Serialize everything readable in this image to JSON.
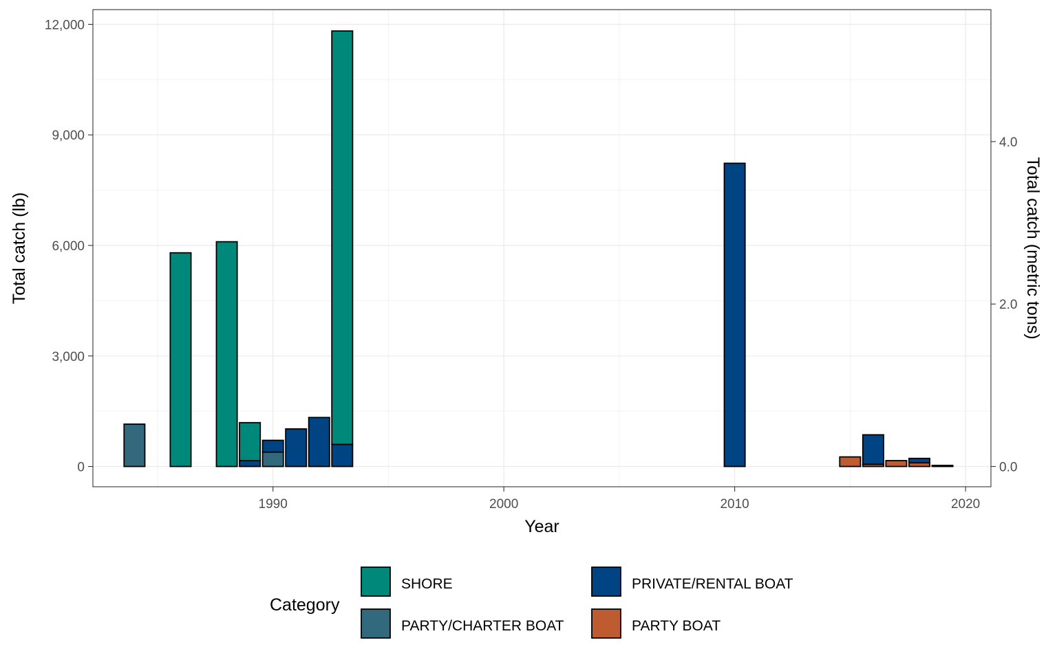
{
  "chart_data": {
    "type": "bar",
    "stacked": true,
    "xlabel": "Year",
    "ylabel": "Total catch (lb)",
    "y2label": "Total catch (metric tons)",
    "xlim": [
      1982.2,
      2021.1
    ],
    "ylim": [
      -550,
      12400
    ],
    "x_ticks": [
      1990,
      2000,
      2010,
      2020
    ],
    "y_ticks": [
      {
        "value": 0,
        "label": "0"
      },
      {
        "value": 3000,
        "label": "3,000"
      },
      {
        "value": 6000,
        "label": "6,000"
      },
      {
        "value": 9000,
        "label": "9,000"
      },
      {
        "value": 12000,
        "label": "12,000"
      }
    ],
    "y2_ticks": [
      {
        "value": 0.0,
        "label": "0.0"
      },
      {
        "value": 2.0,
        "label": "2.0"
      },
      {
        "value": 4.0,
        "label": "4.0"
      }
    ],
    "grid": true,
    "legend": {
      "title": "Category",
      "position": "bottom",
      "entries": [
        {
          "key": "shore",
          "label": "SHORE"
        },
        {
          "key": "private",
          "label": "PRIVATE/RENTAL BOAT"
        },
        {
          "key": "charter",
          "label": "PARTY/CHARTER BOAT"
        },
        {
          "key": "party",
          "label": "PARTY BOAT"
        }
      ]
    },
    "colors": {
      "shore": "#00897B",
      "private": "#004483",
      "charter": "#33697D",
      "party": "#BE5B30"
    },
    "stack_order": [
      "party",
      "charter",
      "private",
      "shore"
    ],
    "years": [
      1984,
      1985,
      1986,
      1987,
      1988,
      1989,
      1990,
      1991,
      1992,
      1993,
      1994,
      1995,
      1996,
      1997,
      1998,
      1999,
      2000,
      2001,
      2002,
      2003,
      2004,
      2005,
      2006,
      2007,
      2008,
      2009,
      2010,
      2011,
      2012,
      2013,
      2014,
      2015,
      2016,
      2017,
      2018,
      2019
    ],
    "series": [
      {
        "key": "shore",
        "name": "SHORE",
        "values": [
          0,
          0,
          5800,
          0,
          6100,
          1030,
          0,
          0,
          0,
          11220,
          0,
          0,
          0,
          0,
          0,
          0,
          0,
          0,
          0,
          0,
          0,
          0,
          0,
          0,
          0,
          0,
          0,
          0,
          0,
          0,
          0,
          0,
          0,
          0,
          0,
          0
        ]
      },
      {
        "key": "private",
        "name": "PRIVATE/RENTAL BOAT",
        "values": [
          0,
          0,
          0,
          0,
          0,
          160,
          320,
          1020,
          1330,
          600,
          0,
          0,
          0,
          0,
          0,
          0,
          0,
          0,
          0,
          0,
          0,
          0,
          0,
          0,
          0,
          0,
          8230,
          0,
          0,
          0,
          0,
          0,
          800,
          0,
          120,
          30
        ]
      },
      {
        "key": "charter",
        "name": "PARTY/CHARTER BOAT",
        "values": [
          1150,
          0,
          0,
          0,
          0,
          0,
          390,
          0,
          0,
          0,
          0,
          0,
          0,
          0,
          0,
          0,
          0,
          0,
          0,
          0,
          0,
          0,
          0,
          0,
          0,
          0,
          0,
          0,
          0,
          0,
          0,
          0,
          0,
          0,
          0,
          0
        ]
      },
      {
        "key": "party",
        "name": "PARTY BOAT",
        "values": [
          0,
          0,
          0,
          0,
          0,
          0,
          0,
          0,
          0,
          0,
          0,
          0,
          0,
          0,
          0,
          0,
          0,
          0,
          0,
          0,
          0,
          0,
          0,
          0,
          0,
          0,
          0,
          0,
          0,
          0,
          0,
          260,
          60,
          160,
          100,
          0
        ]
      }
    ]
  }
}
